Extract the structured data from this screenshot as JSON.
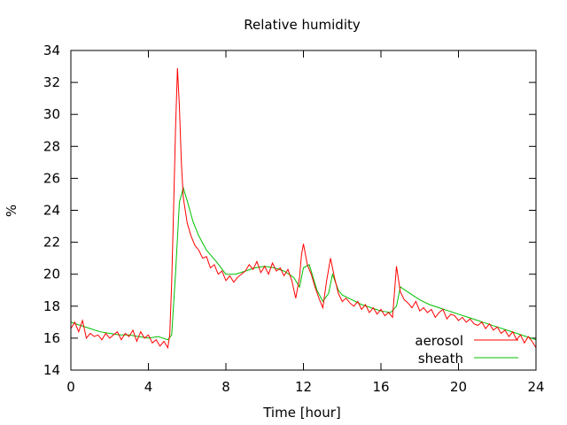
{
  "chart_data": {
    "type": "line",
    "title": "Relative humidity",
    "xlabel": "Time [hour]",
    "ylabel": "%",
    "xlim": [
      0,
      24
    ],
    "ylim": [
      14,
      34
    ],
    "xticks": [
      0,
      4,
      8,
      12,
      16,
      20,
      24
    ],
    "yticks": [
      14,
      16,
      18,
      20,
      22,
      24,
      26,
      28,
      30,
      32,
      34
    ],
    "grid": false,
    "legend_position": "bottom-right",
    "series": [
      {
        "name": "aerosol",
        "color": "#ff0000",
        "x": [
          0,
          0.2,
          0.4,
          0.6,
          0.8,
          1.0,
          1.2,
          1.4,
          1.6,
          1.8,
          2.0,
          2.2,
          2.4,
          2.6,
          2.8,
          3.0,
          3.2,
          3.4,
          3.6,
          3.8,
          4.0,
          4.2,
          4.4,
          4.6,
          4.8,
          5.0,
          5.1,
          5.2,
          5.3,
          5.4,
          5.5,
          5.6,
          5.7,
          5.8,
          5.9,
          6.0,
          6.2,
          6.4,
          6.6,
          6.8,
          7.0,
          7.2,
          7.4,
          7.6,
          7.8,
          8.0,
          8.2,
          8.4,
          8.6,
          8.8,
          9.0,
          9.2,
          9.4,
          9.6,
          9.8,
          10.0,
          10.2,
          10.4,
          10.6,
          10.8,
          11.0,
          11.2,
          11.4,
          11.6,
          11.8,
          11.9,
          12.0,
          12.2,
          12.4,
          12.6,
          12.8,
          13.0,
          13.2,
          13.4,
          13.6,
          13.8,
          14.0,
          14.2,
          14.4,
          14.6,
          14.8,
          15.0,
          15.2,
          15.4,
          15.6,
          15.8,
          16.0,
          16.2,
          16.4,
          16.6,
          16.8,
          17.0,
          17.2,
          17.4,
          17.6,
          17.8,
          18.0,
          18.2,
          18.4,
          18.6,
          18.8,
          19.0,
          19.2,
          19.4,
          19.6,
          19.8,
          20.0,
          20.2,
          20.4,
          20.6,
          20.8,
          21.0,
          21.2,
          21.4,
          21.6,
          21.8,
          22.0,
          22.2,
          22.4,
          22.6,
          22.8,
          23.0,
          23.2,
          23.4,
          23.6,
          23.8,
          24.0
        ],
        "values": [
          16.6,
          17.0,
          16.4,
          17.1,
          16.0,
          16.3,
          16.1,
          16.2,
          15.9,
          16.3,
          16.0,
          16.2,
          16.4,
          15.9,
          16.3,
          16.1,
          16.5,
          15.8,
          16.4,
          16.0,
          16.2,
          15.7,
          15.9,
          15.5,
          15.8,
          15.4,
          16.2,
          19.5,
          24.0,
          29.0,
          32.9,
          30.5,
          27.0,
          24.8,
          24.0,
          23.2,
          22.4,
          21.8,
          21.5,
          21.0,
          21.1,
          20.4,
          20.6,
          20.0,
          20.2,
          19.6,
          19.9,
          19.5,
          19.8,
          20.0,
          20.2,
          20.6,
          20.3,
          20.8,
          20.1,
          20.5,
          20.0,
          20.7,
          20.2,
          20.4,
          19.9,
          20.3,
          19.6,
          18.5,
          19.8,
          21.2,
          21.9,
          20.6,
          20.0,
          19.2,
          18.5,
          17.9,
          19.6,
          21.0,
          19.8,
          18.8,
          18.3,
          18.5,
          18.2,
          18.0,
          18.3,
          17.8,
          18.1,
          17.6,
          17.9,
          17.5,
          17.8,
          17.4,
          17.6,
          17.3,
          20.5,
          18.9,
          18.4,
          18.2,
          17.9,
          18.3,
          17.7,
          17.9,
          17.6,
          17.8,
          17.3,
          17.6,
          17.8,
          17.2,
          17.5,
          17.4,
          17.1,
          17.3,
          17.0,
          17.2,
          16.9,
          16.8,
          17.0,
          16.6,
          16.9,
          16.5,
          16.7,
          16.3,
          16.5,
          16.1,
          16.4,
          15.9,
          16.2,
          15.7,
          16.1,
          15.8,
          15.4
        ]
      },
      {
        "name": "sheath",
        "color": "#00c000",
        "x": [
          0,
          0.5,
          1.0,
          1.5,
          2.0,
          2.5,
          3.0,
          3.5,
          4.0,
          4.5,
          5.0,
          5.2,
          5.4,
          5.6,
          5.8,
          6.0,
          6.3,
          6.6,
          7.0,
          7.5,
          8.0,
          8.5,
          9.0,
          9.5,
          10.0,
          10.5,
          11.0,
          11.5,
          11.8,
          12.0,
          12.3,
          12.7,
          13.0,
          13.3,
          13.5,
          13.8,
          14.0,
          14.5,
          15.0,
          15.5,
          16.0,
          16.5,
          16.8,
          17.0,
          17.5,
          18.0,
          18.5,
          19.0,
          19.5,
          20.0,
          20.5,
          21.0,
          21.5,
          22.0,
          22.5,
          23.0,
          23.5,
          24.0
        ],
        "values": [
          17.0,
          16.8,
          16.6,
          16.4,
          16.3,
          16.2,
          16.2,
          16.1,
          16.0,
          16.1,
          15.9,
          16.2,
          20.0,
          24.5,
          25.4,
          24.6,
          23.3,
          22.4,
          21.5,
          20.8,
          20.0,
          20.0,
          20.2,
          20.4,
          20.5,
          20.4,
          20.2,
          19.8,
          19.2,
          20.4,
          20.6,
          19.0,
          18.3,
          18.8,
          20.0,
          19.0,
          18.7,
          18.4,
          18.1,
          17.9,
          17.7,
          17.6,
          18.0,
          19.2,
          18.8,
          18.4,
          18.1,
          17.9,
          17.7,
          17.5,
          17.3,
          17.1,
          16.9,
          16.7,
          16.5,
          16.3,
          16.1,
          15.9
        ]
      }
    ]
  }
}
